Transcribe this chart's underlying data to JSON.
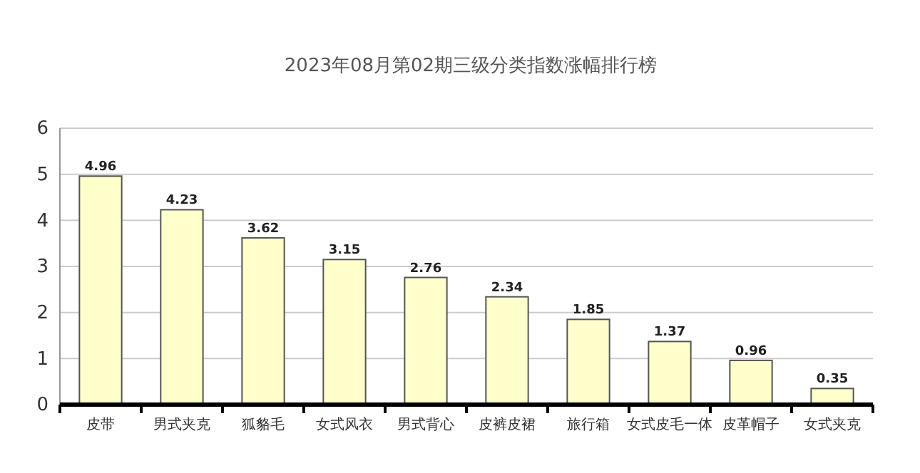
{
  "chart_data": {
    "type": "bar",
    "title": "2023年08月第02期三级分类指数涨幅排行榜",
    "categories": [
      "皮带",
      "男式夹克",
      "狐貉毛",
      "女式风衣",
      "男式背心",
      "皮裤皮裙",
      "旅行箱",
      "女式皮毛一体",
      "皮革帽子",
      "女式夹克"
    ],
    "values": [
      4.96,
      4.23,
      3.62,
      3.15,
      2.76,
      2.34,
      1.85,
      1.37,
      0.96,
      0.35
    ],
    "color": "#ffffcc",
    "ylim": [
      0,
      6
    ],
    "yticks": [
      0,
      1,
      2,
      3,
      4,
      5,
      6
    ],
    "grid": "y",
    "data_labels": true
  }
}
